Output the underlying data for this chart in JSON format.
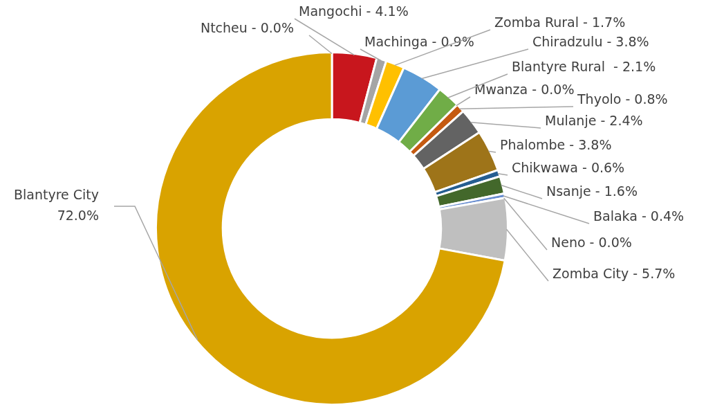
{
  "chart_data": {
    "type": "donut",
    "categories": [
      "Ntcheu -",
      "Mangochi -",
      "Machinga -",
      "Zomba Rural -",
      "Chiradzulu -",
      "Blantyre Rural  -",
      "Mwanza -",
      "Thyolo -",
      "Mulanje -",
      "Phalombe -",
      "Chikwawa -",
      "Nsanje -",
      "Balaka -",
      "Neno -",
      "Zomba City -",
      "Blantyre City"
    ],
    "values": [
      0.0,
      4.1,
      0.9,
      1.7,
      3.8,
      2.1,
      0.0,
      0.8,
      2.4,
      3.8,
      0.6,
      1.6,
      0.4,
      0.0,
      5.7,
      72.0
    ],
    "colors": [
      "#4472c4",
      "#c8161d",
      "#a5a5a5",
      "#ffc000",
      "#5b9bd5",
      "#70ad47",
      "#264478",
      "#c55a11",
      "#636363",
      "#9e7419",
      "#255e91",
      "#43682b",
      "#698ed0",
      "#9e480e",
      "#bfbfbf",
      "#d9a300"
    ],
    "value_labels": [
      "0.0%",
      "4.1%",
      "0.9%",
      "1.7%",
      "3.8%",
      "2.1%",
      "0.0%",
      "0.8%",
      "2.4%",
      "3.8%",
      "0.6%",
      "1.6%",
      "0.4%",
      "0.0%",
      "5.7%",
      "72.0%"
    ],
    "legend": false
  }
}
